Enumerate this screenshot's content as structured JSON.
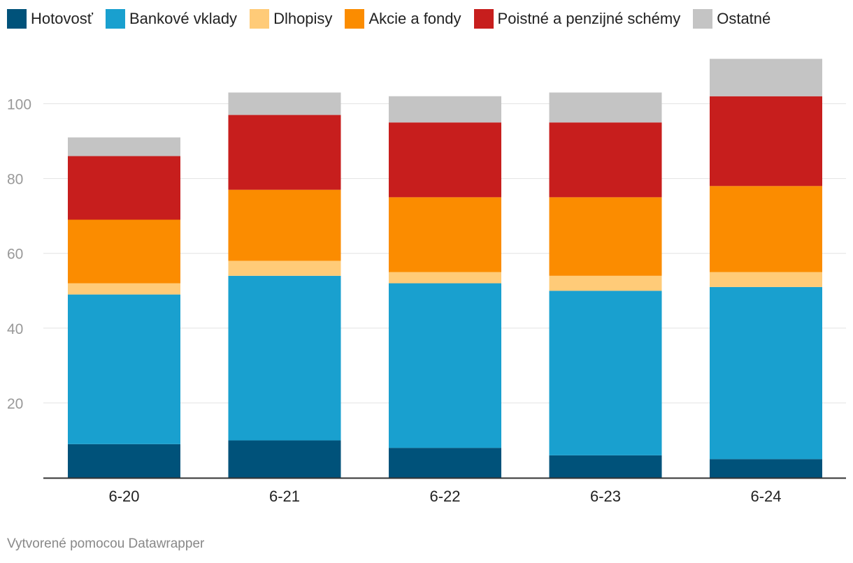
{
  "chart_data": {
    "type": "bar",
    "stacked": true,
    "categories": [
      "6-20",
      "6-21",
      "6-22",
      "6-23",
      "6-24"
    ],
    "ylim": [
      0,
      112
    ],
    "yticks": [
      20,
      40,
      60,
      80,
      100
    ],
    "legend_position": "top",
    "series": [
      {
        "name": "Hotovosť",
        "color": "#00527a",
        "values": [
          9,
          10,
          8,
          6,
          5
        ]
      },
      {
        "name": "Bankové vklady",
        "color": "#19a0cf",
        "values": [
          40,
          44,
          44,
          44,
          46
        ]
      },
      {
        "name": "Dlhopisy",
        "color": "#ffcb78",
        "values": [
          3,
          4,
          3,
          4,
          4
        ]
      },
      {
        "name": "Akcie a fondy",
        "color": "#fb8c00",
        "values": [
          17,
          19,
          20,
          21,
          23
        ]
      },
      {
        "name": "Poistné a penzijné schémy",
        "color": "#c71e1d",
        "values": [
          17,
          20,
          20,
          20,
          24
        ]
      },
      {
        "name": "Ostatné",
        "color": "#c4c4c4",
        "values": [
          5,
          6,
          7,
          8,
          10
        ]
      }
    ]
  },
  "credit": "Vytvorené pomocou Datawrapper"
}
